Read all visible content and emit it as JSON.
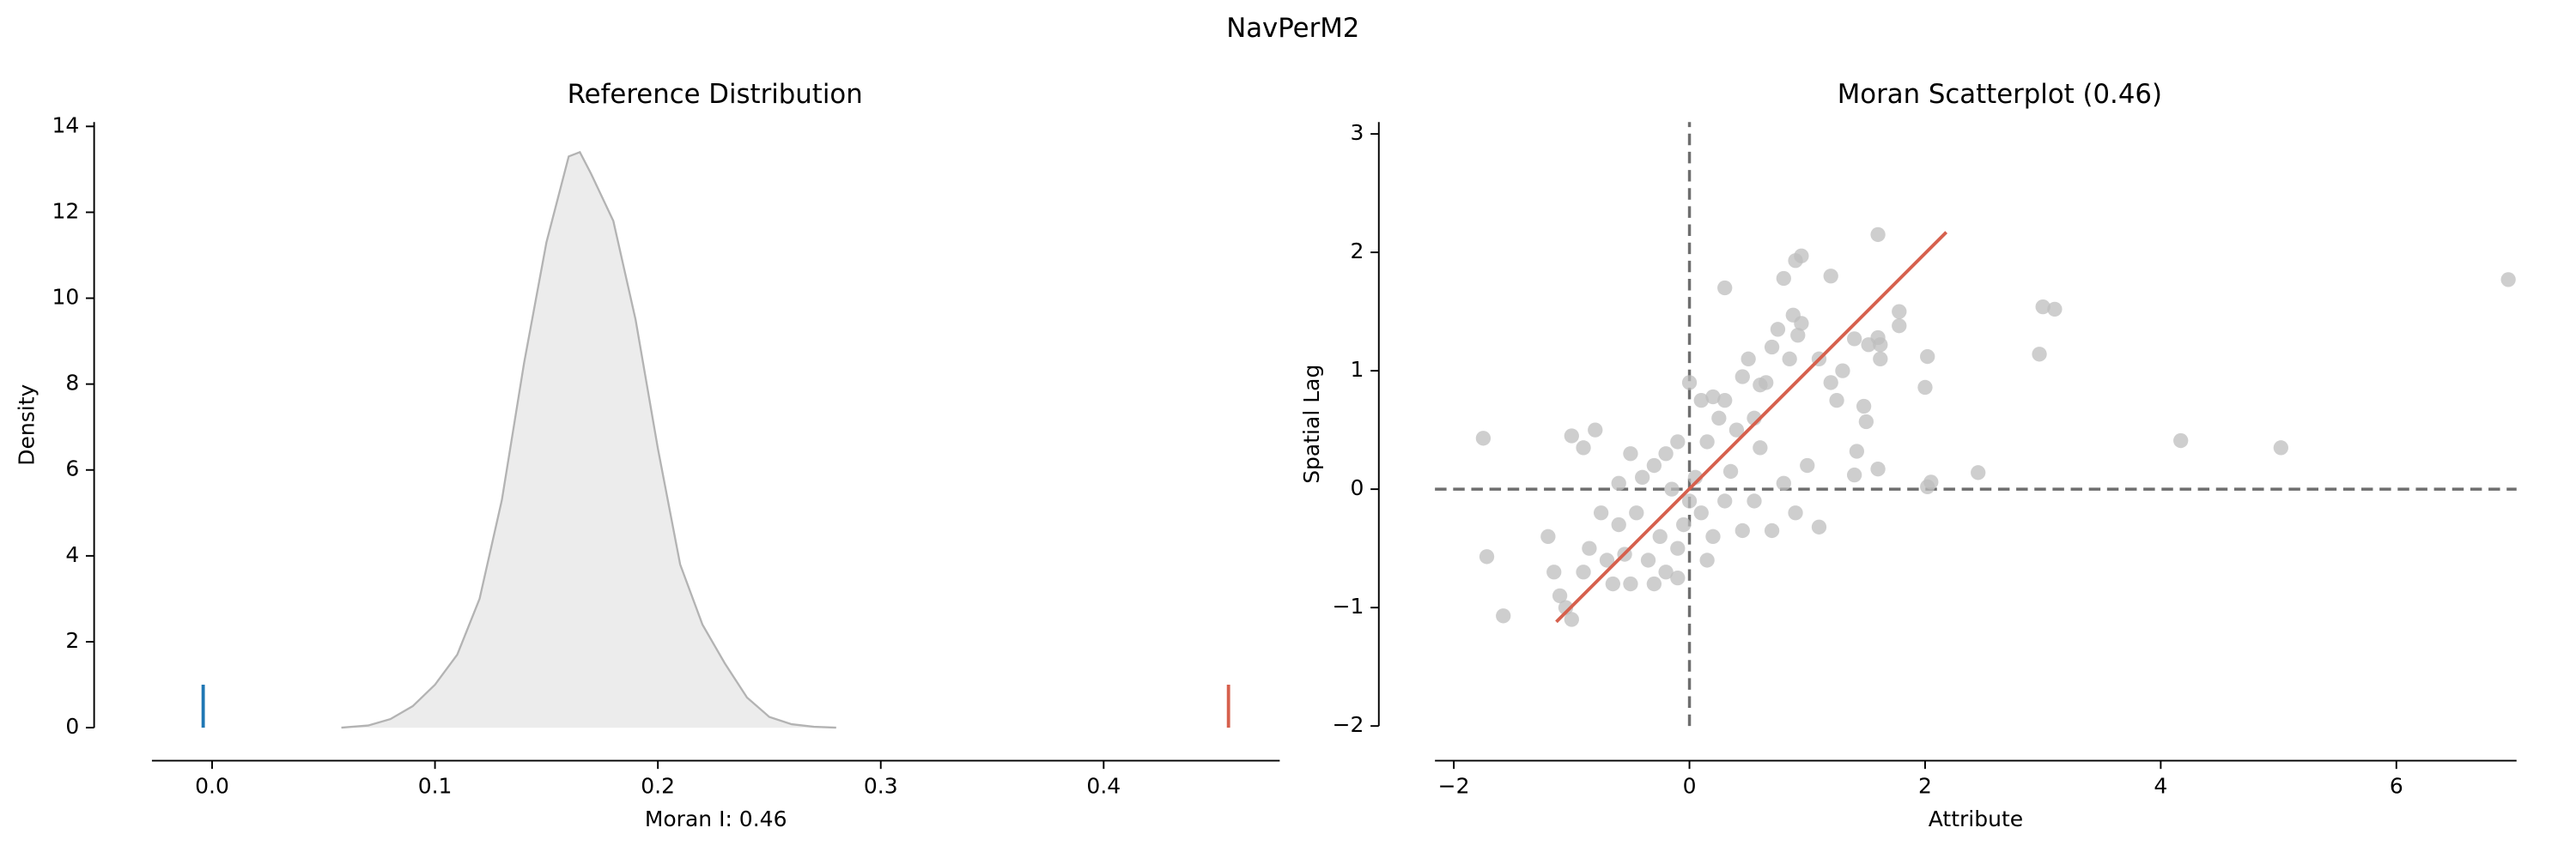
{
  "title": "NavPerM2",
  "chart_data": [
    {
      "type": "area",
      "title": "Reference Distribution",
      "xlabel": "Moran I: 0.46",
      "ylabel": "Density",
      "x": [
        0.058,
        0.07,
        0.08,
        0.09,
        0.1,
        0.11,
        0.12,
        0.13,
        0.14,
        0.15,
        0.16,
        0.165,
        0.17,
        0.18,
        0.19,
        0.2,
        0.21,
        0.22,
        0.23,
        0.24,
        0.25,
        0.26,
        0.27,
        0.28
      ],
      "values": [
        0,
        0.05,
        0.2,
        0.5,
        1.0,
        1.7,
        3.0,
        5.3,
        8.5,
        11.3,
        13.3,
        13.4,
        12.9,
        11.8,
        9.5,
        6.5,
        3.8,
        2.4,
        1.5,
        0.7,
        0.25,
        0.08,
        0.02,
        0
      ],
      "color": "#b3b3b3",
      "fill": "#ececec",
      "markers": [
        {
          "x": -0.004,
          "height": 1,
          "color": "#1f77b4"
        },
        {
          "x": 0.456,
          "height": 1,
          "color": "#d6604d"
        }
      ],
      "xlim": [
        -0.027,
        0.479
      ],
      "ylim": [
        0,
        14.1
      ],
      "xticks": [
        {
          "value": 0,
          "label": "0.0"
        },
        0.1,
        0.2,
        0.3,
        0.4
      ],
      "yticks": [
        0,
        2,
        4,
        6,
        8,
        10,
        12,
        14
      ]
    },
    {
      "type": "scatter",
      "title": "Moran Scatterplot (0.46)",
      "xlabel": "Attribute",
      "ylabel": "Spatial Lag",
      "x": [
        6.95,
        5.02,
        4.17,
        3.1,
        3.0,
        2.97,
        2.45,
        2.05,
        2.02,
        2.02,
        2.0,
        1.78,
        1.78,
        1.6,
        1.6,
        1.52,
        1.6,
        1.62,
        1.62,
        1.4,
        1.48,
        1.5,
        1.42,
        1.4,
        1.3,
        1.25,
        1.2,
        1.2,
        1.1,
        1.1,
        1.0,
        0.95,
        0.95,
        0.9,
        0.88,
        0.92,
        0.85,
        0.8,
        0.75,
        0.7,
        0.65,
        0.6,
        0.6,
        0.55,
        0.5,
        0.45,
        0.4,
        0.3,
        0.3,
        0.25,
        0.2,
        0.15,
        0.1,
        0.05,
        0.0,
        -0.1,
        -1.75,
        -1.72,
        -1.58,
        -1.2,
        -1.15,
        -1.1,
        -1.05,
        -1.0,
        -1.0,
        -0.9,
        -0.8,
        -0.85,
        -0.7,
        -0.6,
        -0.5,
        -0.45,
        -0.4,
        -0.35,
        -0.3,
        -0.25,
        -0.2,
        -0.15,
        -0.1,
        -0.05,
        0.1,
        0.15,
        0.2,
        0.3,
        0.35,
        0.45,
        0.55,
        0.7,
        0.8,
        0.9,
        -0.6,
        -0.75,
        -0.9,
        -0.55,
        -0.3,
        -0.1,
        0.0,
        -0.2,
        -0.5,
        -0.65
      ],
      "values": [
        1.77,
        0.35,
        0.41,
        1.52,
        1.54,
        1.14,
        0.14,
        0.06,
        0.02,
        1.12,
        0.86,
        1.5,
        1.38,
        2.15,
        0.17,
        1.22,
        1.28,
        1.22,
        1.1,
        1.27,
        0.7,
        0.57,
        0.32,
        0.12,
        1.0,
        0.75,
        0.9,
        1.8,
        1.1,
        -0.32,
        0.2,
        1.4,
        1.97,
        1.93,
        1.47,
        1.3,
        1.1,
        1.78,
        1.35,
        1.2,
        0.9,
        0.88,
        0.35,
        0.6,
        1.1,
        0.95,
        0.5,
        1.7,
        0.75,
        0.6,
        0.78,
        0.4,
        0.75,
        0.1,
        0.9,
        0.4,
        0.43,
        -0.57,
        -1.07,
        -0.4,
        -0.7,
        -0.9,
        -1.0,
        -1.1,
        0.45,
        0.35,
        0.5,
        -0.5,
        -0.6,
        -0.3,
        -0.8,
        -0.2,
        0.1,
        -0.6,
        0.2,
        -0.4,
        -0.7,
        0.0,
        -0.5,
        -0.3,
        -0.2,
        -0.6,
        -0.4,
        -0.1,
        0.15,
        -0.35,
        -0.1,
        -0.35,
        0.05,
        -0.2,
        0.05,
        -0.2,
        -0.7,
        -0.55,
        -0.8,
        -0.75,
        -0.1,
        0.3,
        0.3,
        -0.8
      ],
      "color": "#bdbdbd",
      "fit": {
        "x": [
          -1.13,
          2.18
        ],
        "values": [
          -1.12,
          2.17
        ],
        "color": "#d6604d"
      },
      "reference": {
        "x": 0,
        "y": 0,
        "color": "#6e6e6e"
      },
      "xlim": [
        -2.16,
        7.02
      ],
      "ylim": [
        -2,
        3.1
      ],
      "xticks": [
        {
          "value": -2,
          "label": "−2"
        },
        0,
        2,
        4,
        6
      ],
      "yticks": [
        {
          "value": -2,
          "label": "−2"
        },
        {
          "value": -1,
          "label": "−1"
        },
        0,
        1,
        2,
        3
      ]
    }
  ]
}
